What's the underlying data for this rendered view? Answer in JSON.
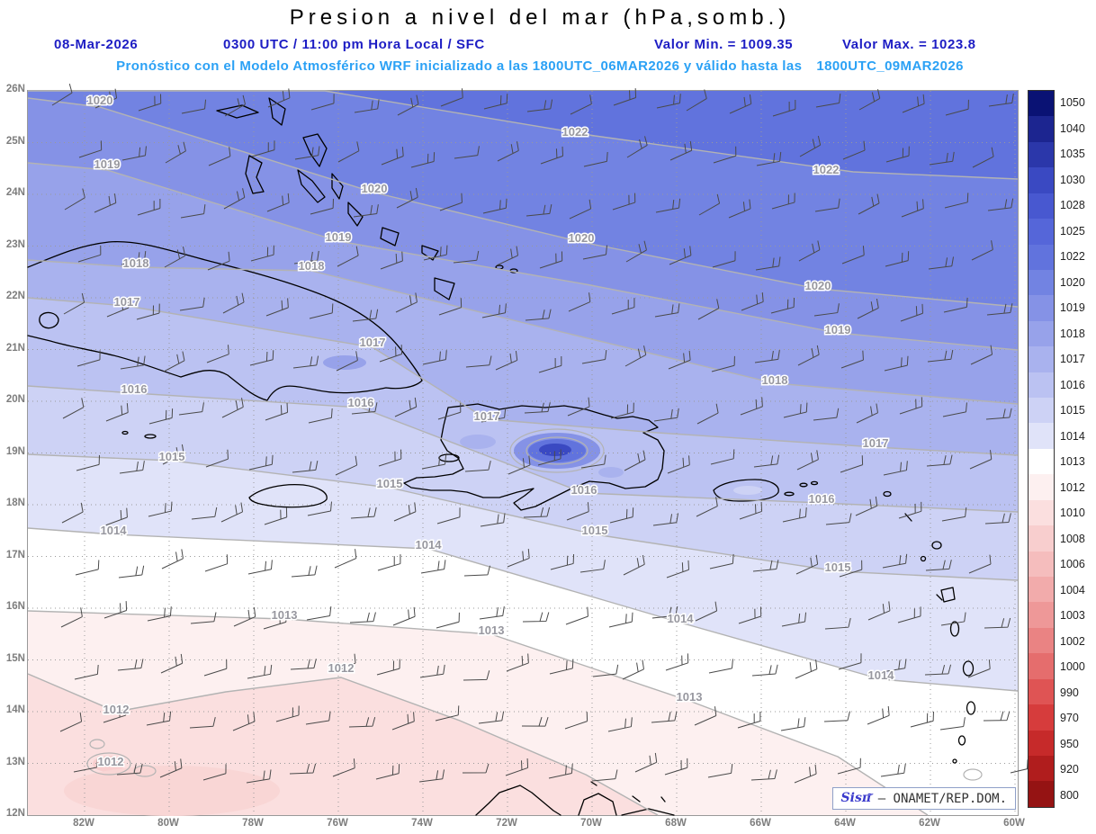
{
  "header": {
    "title": "Presion a nivel del mar (hPa,somb.)",
    "date": "08-Mar-2026",
    "time": "0300 UTC / 11:00 pm Hora Local / SFC",
    "valor_min": "Valor Min. = 1009.35",
    "valor_max": "Valor Max. = 1023.8",
    "forecast_line": "Pronóstico con el Modelo Atmosférico WRF inicializado a las 1800UTC_06MAR2026 y válido hasta las",
    "valid_until": "1800UTC_09MAR2026"
  },
  "attribution": {
    "logo": "Sisπ",
    "accent": "~",
    "text": "– ONAMET/REP.DOM."
  },
  "chart_data": {
    "type": "heatmap",
    "subtype": "filled_contour_sea_level_pressure_map",
    "title": "Presion a nivel del mar (hPa,somb.)",
    "units": "hPa",
    "value_min": 1009.35,
    "value_max": 1023.8,
    "lat_ticks": [
      "26N",
      "25N",
      "24N",
      "23N",
      "22N",
      "21N",
      "20N",
      "19N",
      "18N",
      "17N",
      "16N",
      "15N",
      "14N",
      "13N",
      "12N"
    ],
    "lon_ticks": [
      "82W",
      "80W",
      "78W",
      "76W",
      "74W",
      "72W",
      "70W",
      "68W",
      "66W",
      "64W",
      "62W",
      "60W"
    ],
    "colorbar": {
      "labels": [
        "1050",
        "1040",
        "1035",
        "1030",
        "1028",
        "1025",
        "1022",
        "1020",
        "1019",
        "1018",
        "1017",
        "1016",
        "1015",
        "1014",
        "1013",
        "1012",
        "1010",
        "1008",
        "1006",
        "1004",
        "1003",
        "1002",
        "1000",
        "990",
        "970",
        "950",
        "920",
        "800"
      ],
      "colors": [
        "#0a1274",
        "#1c2590",
        "#2b37aa",
        "#3a49c2",
        "#4858d0",
        "#5566d9",
        "#6173dd",
        "#7283e2",
        "#8592e6",
        "#97a2ea",
        "#a9b2ee",
        "#bbc2f2",
        "#cdd2f5",
        "#e0e3f9",
        "#ffffff",
        "#fdf0f0",
        "#fbdfdf",
        "#f8cece",
        "#f5bdbd",
        "#f2abab",
        "#ee9898",
        "#ea8383",
        "#e56d6d",
        "#df5454",
        "#d63c3c",
        "#c62a2a",
        "#b01d1d",
        "#951313"
      ]
    },
    "base_fill": "#6173dd",
    "contours": [
      {
        "level": 1022,
        "fill_below": "#7283e2",
        "pts": [
          [
            0,
            0
          ],
          [
            330,
            0
          ],
          [
            630,
            50
          ],
          [
            917,
            90
          ],
          [
            1100,
            98
          ]
        ]
      },
      {
        "level": 1020,
        "fill_below": "#8592e6",
        "pts": [
          [
            0,
            8
          ],
          [
            80,
            18
          ],
          [
            385,
            113
          ],
          [
            615,
            168
          ],
          [
            878,
            220
          ],
          [
            1100,
            240
          ]
        ]
      },
      {
        "level": 1019,
        "fill_below": "#97a2ea",
        "pts": [
          [
            0,
            80
          ],
          [
            88,
            88
          ],
          [
            345,
            167
          ],
          [
            620,
            215
          ],
          [
            900,
            269
          ],
          [
            1100,
            288
          ]
        ]
      },
      {
        "level": 1018,
        "fill_below": "#a9b2ee",
        "pts": [
          [
            0,
            188
          ],
          [
            120,
            196
          ],
          [
            315,
            200
          ],
          [
            560,
            260
          ],
          [
            830,
            325
          ],
          [
            1100,
            348
          ]
        ]
      },
      {
        "level": 1017,
        "fill_below": "#bbc2f2",
        "pts": [
          [
            0,
            230
          ],
          [
            110,
            239
          ],
          [
            383,
            285
          ],
          [
            510,
            365
          ],
          [
            700,
            380
          ],
          [
            942,
            396
          ],
          [
            1100,
            405
          ]
        ]
      },
      {
        "level": 1016,
        "fill_below": "#cdd2f5",
        "pts": [
          [
            0,
            328
          ],
          [
            118,
            336
          ],
          [
            370,
            352
          ],
          [
            618,
            447
          ],
          [
            882,
            458
          ],
          [
            1100,
            468
          ]
        ]
      },
      {
        "level": 1015,
        "fill_below": "#e0e3f9",
        "pts": [
          [
            0,
            404
          ],
          [
            160,
            411
          ],
          [
            402,
            441
          ],
          [
            630,
            493
          ],
          [
            900,
            534
          ],
          [
            1100,
            544
          ]
        ]
      },
      {
        "level": 1014,
        "fill_below": "#ffffff",
        "pts": [
          [
            0,
            486
          ],
          [
            95,
            493
          ],
          [
            445,
            509
          ],
          [
            725,
            591
          ],
          [
            948,
            654
          ],
          [
            1100,
            667
          ]
        ]
      },
      {
        "level": 1013,
        "fill_below": "#fdf0f0",
        "pts": [
          [
            0,
            578
          ],
          [
            285,
            587
          ],
          [
            515,
            604
          ],
          [
            735,
            678
          ],
          [
            900,
            740
          ],
          [
            1000,
            805
          ]
        ]
      },
      {
        "level": 1012,
        "fill_below": "#fbdfdf",
        "pts": [
          [
            0,
            648
          ],
          [
            98,
            690
          ],
          [
            220,
            668
          ],
          [
            348,
            652
          ],
          [
            480,
            700
          ],
          [
            620,
            760
          ],
          [
            700,
            805
          ]
        ]
      }
    ],
    "patches": [
      [
        588,
        400,
        48,
        20,
        "#8592e6"
      ],
      [
        588,
        400,
        32,
        13,
        "#6173dd"
      ],
      [
        586,
        399,
        18,
        7,
        "#3a49c2"
      ],
      [
        500,
        390,
        20,
        8,
        "#a9b2ee"
      ],
      [
        648,
        424,
        14,
        6,
        "#a9b2ee"
      ],
      [
        800,
        444,
        16,
        5,
        "#cdd2f5"
      ],
      [
        352,
        302,
        24,
        8,
        "#97a2ea"
      ],
      [
        90,
        748,
        18,
        9,
        "#f8cece"
      ],
      [
        160,
        778,
        120,
        28,
        "#f9d6d5"
      ]
    ],
    "rings": [
      [
        588,
        400,
        52,
        24
      ],
      [
        588,
        400,
        34,
        15
      ],
      [
        90,
        748,
        24,
        12
      ],
      [
        130,
        756,
        12,
        6
      ],
      [
        1050,
        760,
        10,
        6
      ],
      [
        77,
        726,
        8,
        5
      ]
    ],
    "contour_labels": [
      [
        1020,
        80,
        15
      ],
      [
        1019,
        88,
        86
      ],
      [
        1020,
        385,
        113
      ],
      [
        1022,
        608,
        50
      ],
      [
        1022,
        887,
        92
      ],
      [
        1019,
        345,
        167
      ],
      [
        1020,
        615,
        168
      ],
      [
        1018,
        120,
        196
      ],
      [
        1018,
        315,
        199
      ],
      [
        1020,
        878,
        221
      ],
      [
        1017,
        110,
        239
      ],
      [
        1019,
        900,
        270
      ],
      [
        1017,
        383,
        284
      ],
      [
        1018,
        830,
        326
      ],
      [
        1016,
        118,
        336
      ],
      [
        1016,
        370,
        351
      ],
      [
        1017,
        510,
        366
      ],
      [
        1017,
        942,
        396
      ],
      [
        1015,
        160,
        411
      ],
      [
        1015,
        402,
        441
      ],
      [
        1016,
        618,
        448
      ],
      [
        1016,
        882,
        458
      ],
      [
        1014,
        95,
        493
      ],
      [
        1015,
        630,
        493
      ],
      [
        1014,
        445,
        509
      ],
      [
        1015,
        900,
        534
      ],
      [
        1013,
        285,
        587
      ],
      [
        1014,
        725,
        591
      ],
      [
        1013,
        515,
        604
      ],
      [
        1012,
        348,
        646
      ],
      [
        1014,
        948,
        654
      ],
      [
        1013,
        735,
        678
      ],
      [
        1012,
        98,
        692
      ],
      [
        1012,
        92,
        750
      ]
    ]
  }
}
